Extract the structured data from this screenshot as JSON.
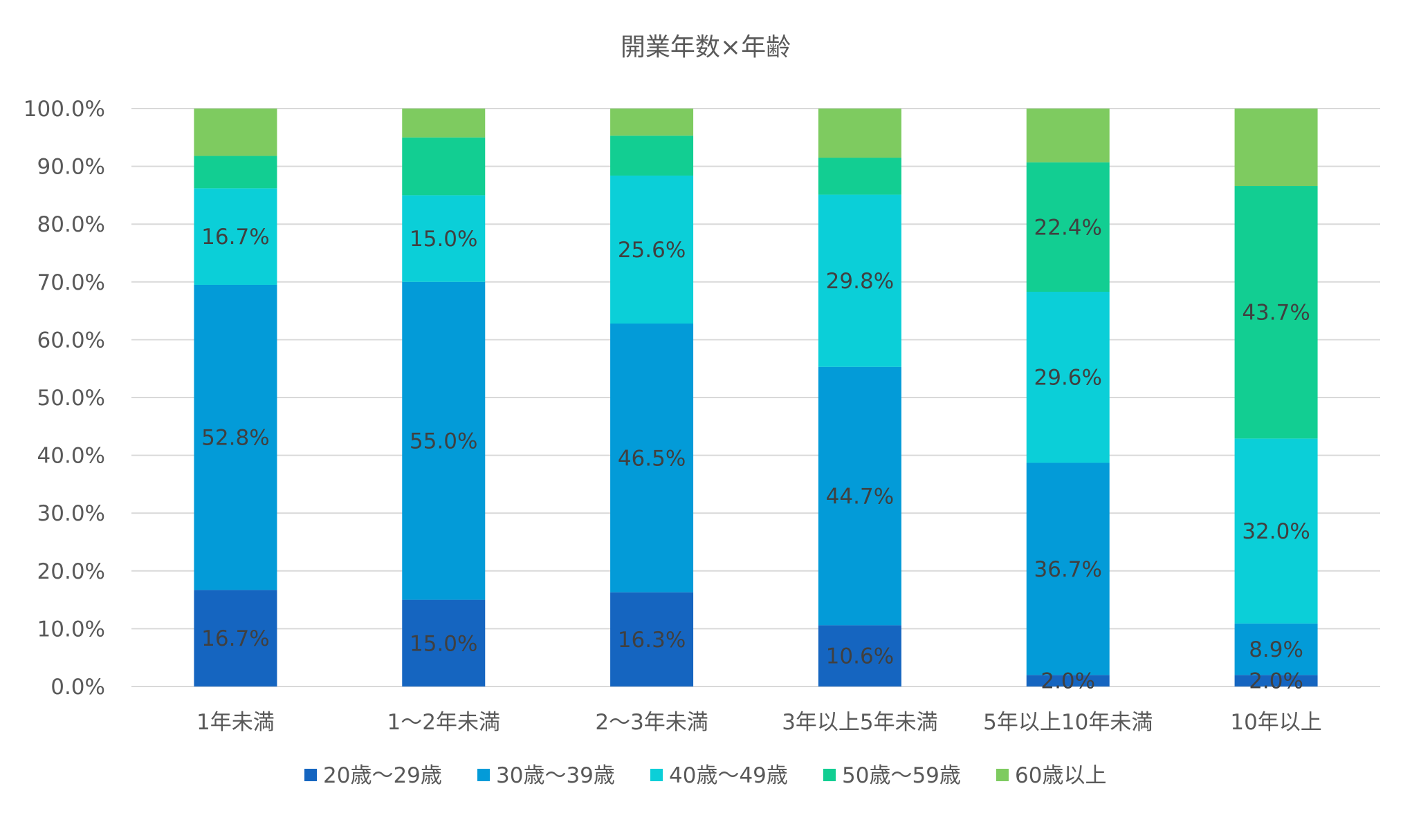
{
  "chart_data": {
    "type": "bar",
    "stacked": true,
    "title": "開業年数×年齢",
    "xlabel": "",
    "ylabel": "",
    "ylim": [
      0,
      100
    ],
    "y_ticks": [
      0,
      10,
      20,
      30,
      40,
      50,
      60,
      70,
      80,
      90,
      100
    ],
    "y_tick_labels": [
      "0.0%",
      "10.0%",
      "20.0%",
      "30.0%",
      "40.0%",
      "50.0%",
      "60.0%",
      "70.0%",
      "80.0%",
      "90.0%",
      "100.0%"
    ],
    "grid": true,
    "legend_position": "bottom",
    "categories": [
      "1年未満",
      "1～2年未満",
      "2～3年未満",
      "3年以上5年未満",
      "5年以上10年未満",
      "10年以上"
    ],
    "series": [
      {
        "name": "20歳～29歳",
        "color": "#1565C0",
        "values": [
          16.7,
          15.0,
          16.3,
          10.6,
          2.0,
          2.0
        ],
        "labels": [
          "16.7%",
          "15.0%",
          "16.3%",
          "10.6%",
          "2.0%",
          "2.0%"
        ]
      },
      {
        "name": "30歳～39歳",
        "color": "#039BD8",
        "values": [
          52.8,
          55.0,
          46.5,
          44.7,
          36.7,
          8.9
        ],
        "labels": [
          "52.8%",
          "55.0%",
          "46.5%",
          "44.7%",
          "36.7%",
          "8.9%"
        ]
      },
      {
        "name": "40歳～49歳",
        "color": "#0BCFD8",
        "values": [
          16.7,
          15.0,
          25.6,
          29.8,
          29.6,
          32.0
        ],
        "labels": [
          "16.7%",
          "15.0%",
          "25.6%",
          "29.8%",
          "29.6%",
          "32.0%"
        ]
      },
      {
        "name": "50歳～59歳",
        "color": "#12CE92",
        "values": [
          5.6,
          10.0,
          6.9,
          6.4,
          22.4,
          43.7
        ],
        "labels": [
          "",
          "",
          "",
          "",
          "22.4%",
          "43.7%"
        ]
      },
      {
        "name": "60歳以上",
        "color": "#7ECB60",
        "values": [
          8.3,
          5.0,
          4.7,
          8.5,
          9.3,
          13.4
        ],
        "labels": [
          "",
          "",
          "",
          "",
          "",
          ""
        ]
      }
    ]
  }
}
